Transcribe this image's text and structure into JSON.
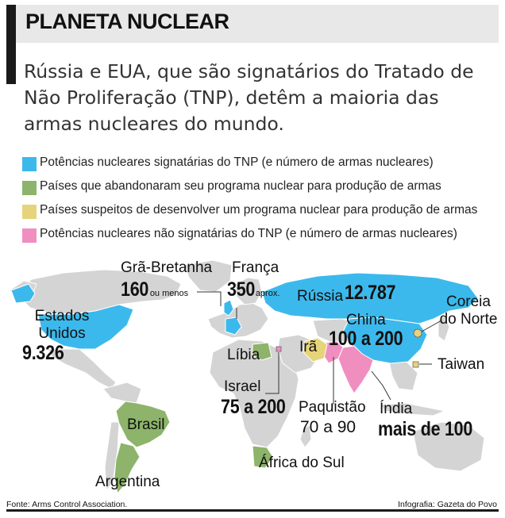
{
  "header": {
    "title": "PLANETA NUCLEAR",
    "subtitle": "Rússia e EUA, que são signatários do Tratado de Não Proliferação (TNP), detêm a maioria das armas nucleares do mundo."
  },
  "legend": [
    {
      "label": "Potências nucleares signatárias do TNP (e número de armas nucleares)",
      "color": "#3cb9ec"
    },
    {
      "label": "Países que abandonaram seu programa nuclear para produção de armas",
      "color": "#8db46a"
    },
    {
      "label": "Países suspeitos de desenvolver um programa nuclear para produção de armas",
      "color": "#e6d47a"
    },
    {
      "label": "Potências nucleares não signatárias do TNP (e número de armas nucleares)",
      "color": "#f08ec0"
    }
  ],
  "colors": {
    "land": "#d4d4d4",
    "ocean": "#ffffff",
    "signatory": "#3cb9ec",
    "abandoned": "#8db46a",
    "suspected": "#e6d47a",
    "non_signatory": "#f08ec0"
  },
  "map": {
    "usa": {
      "name": "Estados Unidos",
      "value": "9.326"
    },
    "uk": {
      "name": "Grã-Bretanha",
      "value": "160",
      "note": "ou menos"
    },
    "france": {
      "name": "França",
      "value": "350",
      "note": "aprox."
    },
    "russia": {
      "name": "Rússia",
      "value": "12.787"
    },
    "china": {
      "name": "China",
      "value": "100 a 200"
    },
    "north_korea": {
      "name": "Coreia do Norte"
    },
    "taiwan": {
      "name": "Taiwan"
    },
    "libya": {
      "name": "Líbia"
    },
    "iran": {
      "name": "Irã"
    },
    "israel": {
      "name": "Israel",
      "value": "75 a 200"
    },
    "pakistan": {
      "name": "Paquistão",
      "value": "70 a 90"
    },
    "india": {
      "name": "Índia",
      "value": "mais de 100"
    },
    "brazil": {
      "name": "Brasil"
    },
    "argentina": {
      "name": "Argentina"
    },
    "south_africa": {
      "name": "África do Sul"
    }
  },
  "footer": {
    "source": "Fonte: Arms Control Association.",
    "credit": "Infografia: Gazeta do Povo"
  }
}
